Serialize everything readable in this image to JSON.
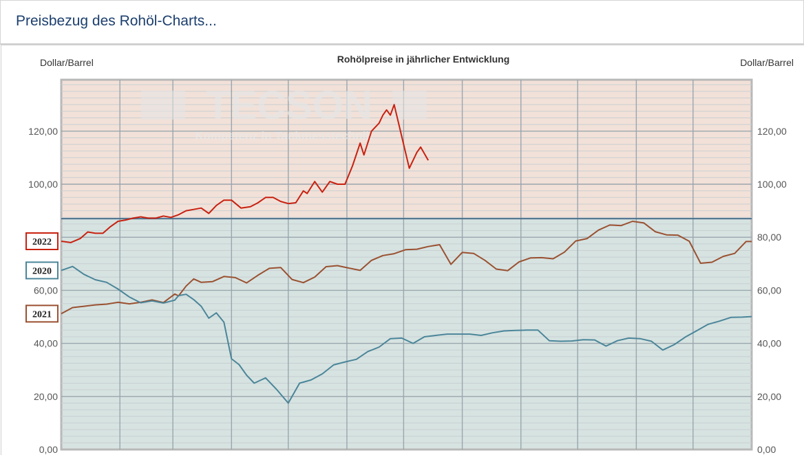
{
  "page": {
    "title": "Preisbezug des Rohöl-Charts..."
  },
  "watermark": {
    "brand": "TECSON",
    "tagline": "Kompetenz in Tankmesstechnik"
  },
  "chart_data": {
    "type": "line",
    "title": "Rohölpreise in jährlicher Entwicklung",
    "ylabel_left": "Dollar/Barrel",
    "ylabel_right": "Dollar/Barrel",
    "ylim": [
      0,
      140
    ],
    "y_ticks": [
      "0,00",
      "20,00",
      "40,00",
      "60,00",
      "80,00",
      "100,00",
      "120,00"
    ],
    "y_tick_values": [
      0,
      20,
      40,
      60,
      80,
      100,
      120
    ],
    "x_range": [
      0,
      365
    ],
    "x_gridlines_days": [
      31,
      59,
      90,
      120,
      151,
      181,
      212,
      243,
      273,
      304,
      334
    ],
    "reference_level": 87,
    "grid": true,
    "colors": {
      "2022": "#c8200f",
      "2021": "#9a5030",
      "2020": "#4a8599",
      "upper_bg": "#f2e1d8",
      "lower_bg": "#d6e3e1",
      "reference_line": "#4a6f8c"
    },
    "series": [
      {
        "name": "2022",
        "x": [
          0,
          5,
          10,
          14,
          18,
          22,
          26,
          30,
          34,
          38,
          42,
          46,
          50,
          54,
          58,
          62,
          66,
          70,
          74,
          78,
          82,
          86,
          90,
          95,
          100,
          104,
          108,
          112,
          116,
          120,
          124,
          128,
          130,
          134,
          138,
          142,
          146,
          150,
          154,
          158,
          160,
          164,
          168,
          170,
          172,
          174,
          176,
          180,
          184,
          188,
          190,
          194
        ],
        "values": [
          78.5,
          78,
          79.5,
          82,
          81.5,
          81.5,
          84,
          86,
          86.5,
          87.2,
          87.7,
          87.2,
          87.2,
          88,
          87.5,
          88.5,
          90,
          90.5,
          91,
          89,
          92,
          94,
          94,
          91,
          91.5,
          93,
          95,
          95,
          93.5,
          92.7,
          93,
          97.5,
          96.5,
          101,
          97,
          101,
          100,
          100,
          107,
          115.5,
          111,
          120,
          123,
          126,
          128,
          126,
          130,
          118,
          106,
          112,
          114,
          109
        ]
      },
      {
        "name": "2021",
        "x": [
          0,
          6,
          12,
          18,
          24,
          30,
          36,
          42,
          48,
          54,
          60,
          62,
          66,
          70,
          74,
          80,
          86,
          92,
          98,
          104,
          110,
          116,
          122,
          128,
          134,
          140,
          146,
          152,
          158,
          164,
          170,
          176,
          182,
          188,
          194,
          200,
          206,
          212,
          218,
          224,
          230,
          236,
          242,
          248,
          254,
          260,
          266,
          272,
          278,
          284,
          290,
          296,
          302,
          308,
          314,
          320,
          326,
          332,
          338,
          344,
          350,
          356,
          362,
          365
        ],
        "values": [
          51.2,
          53.5,
          54,
          54.5,
          54.8,
          55.5,
          54.9,
          55.5,
          56.4,
          55.4,
          58.6,
          57.9,
          61.6,
          64.3,
          63,
          63.3,
          65.2,
          64.8,
          62.8,
          65.7,
          68.3,
          68.6,
          64.1,
          62.9,
          65,
          68.9,
          69.3,
          68.4,
          67.5,
          71.3,
          73.1,
          73.8,
          75.3,
          75.5,
          76.5,
          77.2,
          69.8,
          74.3,
          73.9,
          71.3,
          68,
          67.4,
          70.7,
          72.2,
          72.3,
          71.9,
          74.4,
          78.6,
          79.5,
          82.7,
          84.6,
          84.4,
          86,
          85.4,
          82.1,
          80.9,
          80.8,
          78.5,
          70.2,
          70.6,
          72.8,
          73.9,
          78.4,
          78.4
        ]
      },
      {
        "name": "2020",
        "x": [
          0,
          6,
          12,
          18,
          24,
          30,
          36,
          42,
          48,
          54,
          60,
          62,
          66,
          70,
          74,
          78,
          82,
          86,
          90,
          94,
          98,
          102,
          108,
          114,
          120,
          126,
          132,
          138,
          144,
          150,
          156,
          162,
          168,
          174,
          180,
          186,
          192,
          198,
          204,
          210,
          216,
          222,
          228,
          234,
          240,
          246,
          252,
          258,
          264,
          270,
          276,
          282,
          288,
          294,
          300,
          306,
          312,
          318,
          324,
          330,
          336,
          342,
          348,
          354,
          360,
          365
        ],
        "values": [
          67.5,
          69,
          66,
          64,
          63,
          60.5,
          57.5,
          55.3,
          56,
          55.2,
          56.3,
          58,
          58.5,
          56.5,
          54,
          49.5,
          51.5,
          48,
          34.2,
          32,
          28,
          25,
          27,
          22.5,
          17.5,
          25,
          26.2,
          28.5,
          31.9,
          33,
          34,
          36.9,
          38.6,
          41.8,
          42,
          40,
          42.5,
          43,
          43.5,
          43.5,
          43.5,
          43,
          44,
          44.7,
          44.9,
          45,
          45,
          41,
          40.8,
          40.9,
          41.4,
          41.3,
          39,
          41,
          42,
          41.8,
          40.8,
          37.5,
          39.5,
          42.4,
          44.8,
          47.2,
          48.4,
          49.8,
          49.9,
          50.1
        ]
      }
    ]
  }
}
